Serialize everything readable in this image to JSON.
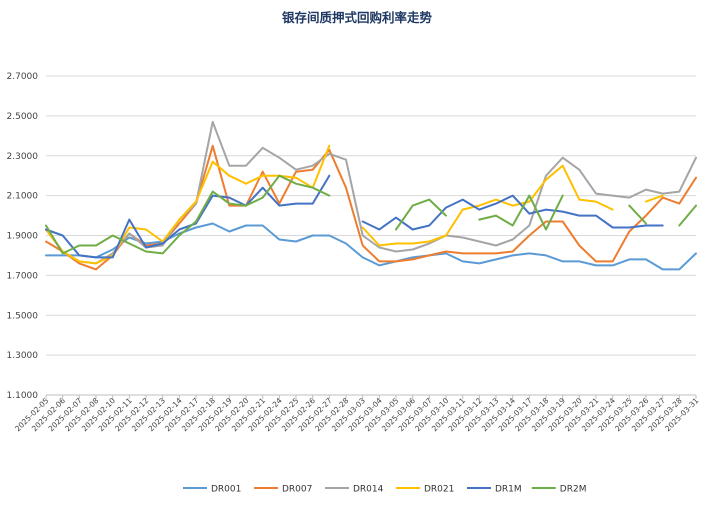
{
  "chart_data": {
    "type": "line",
    "title": "银存间质押式回购利率走势",
    "ylim": [
      1.1,
      2.7
    ],
    "yticks": [
      "1.1000",
      "1.3000",
      "1.5000",
      "1.7000",
      "1.9000",
      "2.1000",
      "2.3000",
      "2.5000",
      "2.7000"
    ],
    "categories": [
      "2025-02-05",
      "2025-02-06",
      "2025-02-07",
      "2025-02-08",
      "2025-02-10",
      "2025-02-11",
      "2025-02-12",
      "2025-02-13",
      "2025-02-14",
      "2025-02-17",
      "2025-02-18",
      "2025-02-19",
      "2025-02-20",
      "2025-02-21",
      "2025-02-24",
      "2025-02-25",
      "2025-02-26",
      "2025-02-27",
      "2025-02-28",
      "2025-03-03",
      "2025-03-04",
      "2025-03-05",
      "2025-03-06",
      "2025-03-07",
      "2025-03-10",
      "2025-03-11",
      "2025-03-12",
      "2025-03-13",
      "2025-03-14",
      "2025-03-17",
      "2025-03-18",
      "2025-03-19",
      "2025-03-20",
      "2025-03-21",
      "2025-03-24",
      "2025-03-25",
      "2025-03-26",
      "2025-03-27",
      "2025-03-28",
      "2025-03-31"
    ],
    "legend_position": "bottom",
    "grid": true,
    "series": [
      {
        "name": "DR001",
        "color": "#5b9bd5",
        "values": [
          1.8,
          1.8,
          1.8,
          1.79,
          1.83,
          1.89,
          1.86,
          1.87,
          1.91,
          1.94,
          1.96,
          1.92,
          1.95,
          1.95,
          1.88,
          1.87,
          1.9,
          1.9,
          1.86,
          1.79,
          1.75,
          1.77,
          1.79,
          1.8,
          1.81,
          1.77,
          1.76,
          1.78,
          1.8,
          1.81,
          1.8,
          1.77,
          1.77,
          1.75,
          1.75,
          1.78,
          1.78,
          1.73,
          1.73,
          1.81
        ]
      },
      {
        "name": "DR007",
        "color": "#ed7d31",
        "values": [
          1.87,
          1.82,
          1.76,
          1.73,
          1.8,
          1.91,
          1.85,
          1.86,
          1.96,
          2.06,
          2.35,
          2.05,
          2.05,
          2.22,
          2.06,
          2.22,
          2.23,
          2.33,
          2.14,
          1.85,
          1.77,
          1.77,
          1.78,
          1.8,
          1.82,
          1.81,
          1.81,
          1.81,
          1.82,
          1.9,
          1.97,
          1.97,
          1.85,
          1.77,
          1.77,
          1.92,
          2.0,
          2.09,
          2.06,
          2.19
        ]
      },
      {
        "name": "DR014",
        "color": "#a5a5a5",
        "values": [
          1.93,
          1.82,
          1.77,
          1.76,
          1.81,
          1.91,
          1.84,
          1.85,
          1.98,
          2.06,
          2.47,
          2.25,
          2.25,
          2.34,
          2.29,
          2.23,
          2.25,
          2.31,
          2.28,
          1.9,
          1.84,
          1.82,
          1.83,
          1.86,
          1.9,
          1.89,
          1.87,
          1.85,
          1.88,
          1.95,
          2.2,
          2.29,
          2.23,
          2.11,
          2.1,
          2.09,
          2.13,
          2.11,
          2.12,
          2.29
        ]
      },
      {
        "name": "DR021",
        "color": "#ffc000",
        "values": [
          1.93,
          1.82,
          1.77,
          1.76,
          1.8,
          1.94,
          1.93,
          1.87,
          1.98,
          2.07,
          2.27,
          2.2,
          2.16,
          2.2,
          2.2,
          2.19,
          2.14,
          2.35,
          null,
          1.94,
          1.85,
          1.86,
          1.86,
          1.87,
          1.9,
          2.03,
          2.05,
          2.08,
          2.05,
          2.07,
          2.18,
          2.25,
          2.08,
          2.07,
          2.03,
          null,
          2.07,
          2.1,
          null,
          null
        ]
      },
      {
        "name": "DR1M",
        "color": "#4472c4",
        "values": [
          1.93,
          1.9,
          1.8,
          1.79,
          1.79,
          1.98,
          1.84,
          1.86,
          1.93,
          1.96,
          2.1,
          2.09,
          2.05,
          2.14,
          2.05,
          2.06,
          2.06,
          2.2,
          null,
          1.97,
          1.93,
          1.99,
          1.93,
          1.95,
          2.04,
          2.08,
          2.03,
          2.06,
          2.1,
          2.01,
          2.03,
          2.02,
          2.0,
          2.0,
          1.94,
          1.94,
          1.95,
          1.95,
          null,
          null
        ]
      },
      {
        "name": "DR2M",
        "color": "#70ad47",
        "values": [
          1.95,
          1.81,
          1.85,
          1.85,
          1.9,
          1.86,
          1.82,
          1.81,
          1.9,
          1.97,
          2.12,
          2.06,
          2.05,
          2.09,
          2.2,
          2.16,
          2.14,
          2.1,
          null,
          null,
          null,
          1.93,
          2.05,
          2.08,
          2.0,
          null,
          1.98,
          2.0,
          1.95,
          2.1,
          1.93,
          2.1,
          null,
          null,
          null,
          2.05,
          1.96,
          null,
          1.95,
          2.05
        ]
      }
    ]
  }
}
